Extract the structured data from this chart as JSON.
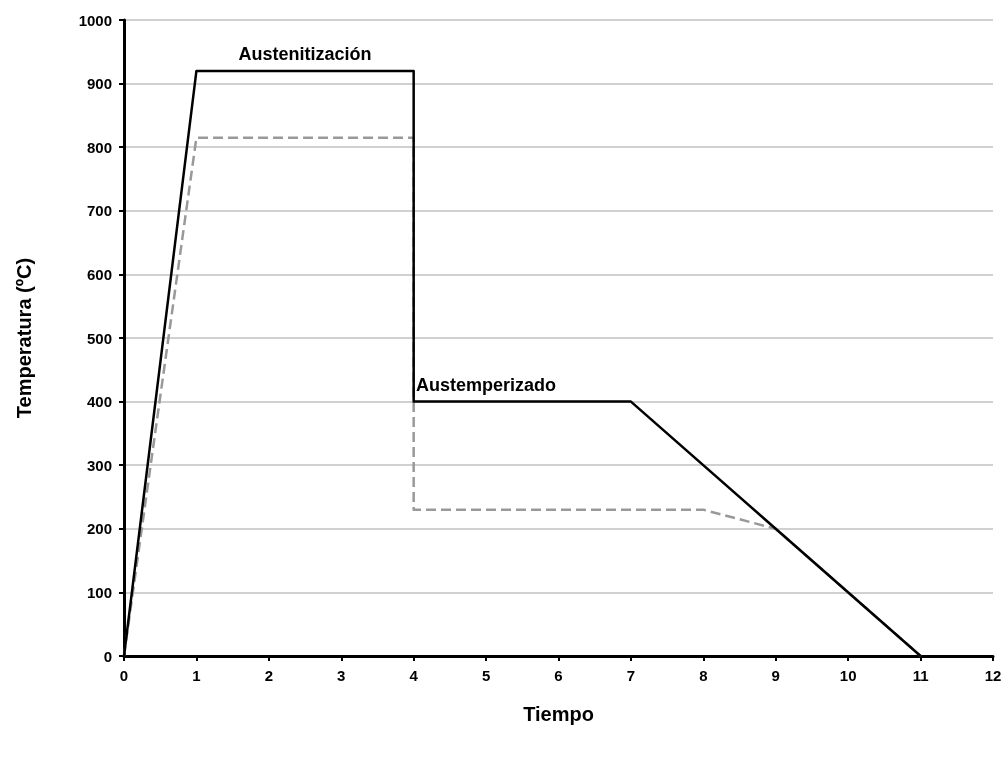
{
  "chart_data": {
    "type": "line",
    "xlabel": "Tiempo",
    "ylabel": "Temperatura (ºC)",
    "xlim": [
      0,
      12
    ],
    "xticks": [
      0,
      1,
      2,
      3,
      4,
      5,
      6,
      7,
      8,
      9,
      10,
      11,
      12
    ],
    "ylim": [
      0,
      1000
    ],
    "yticks": [
      0,
      100,
      200,
      300,
      400,
      500,
      600,
      700,
      800,
      900,
      1000
    ],
    "grid": "y",
    "marker": "none",
    "series": [
      {
        "color": "#999999",
        "line_style": "dashed",
        "x": [
          0,
          1,
          4,
          4,
          8,
          9,
          11
        ],
        "values": [
          0,
          815,
          815,
          230,
          230,
          200,
          0
        ]
      },
      {
        "color": "#000000",
        "line_style": "solid",
        "x": [
          0,
          1,
          4,
          4,
          7,
          11
        ],
        "values": [
          0,
          920,
          920,
          400,
          400,
          0
        ]
      }
    ],
    "annotations": [
      {
        "text": "Austenitización",
        "x": 2.5,
        "y": 920
      },
      {
        "text": "Austemperizado",
        "x": 5,
        "y": 400
      }
    ]
  }
}
